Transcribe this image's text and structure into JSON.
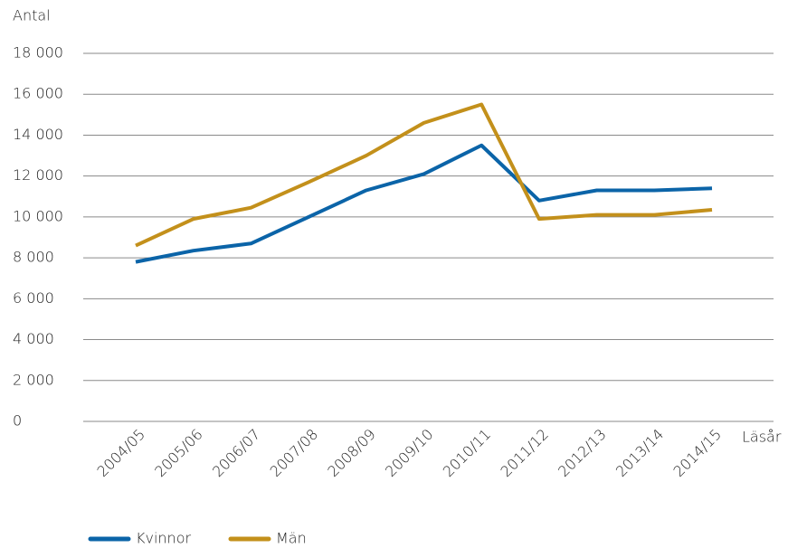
{
  "chart_data": {
    "type": "line",
    "y_axis_label": "Antal",
    "x_axis_label": "Läsår",
    "categories": [
      "2004/05",
      "2005/06",
      "2006/07",
      "2007/08",
      "2008/09",
      "2009/10",
      "2010/11",
      "2011/12",
      "2012/13",
      "2013/14",
      "2014/15"
    ],
    "series": [
      {
        "name": "Kvinnor",
        "color": "#0b64a8",
        "values": [
          7800,
          8350,
          8700,
          10000,
          11300,
          12100,
          13500,
          10800,
          11300,
          11300,
          11400
        ]
      },
      {
        "name": "Män",
        "color": "#c3901b",
        "values": [
          8600,
          9900,
          10450,
          11700,
          13000,
          14600,
          15500,
          9900,
          10100,
          10100,
          10350
        ]
      }
    ],
    "ylim": [
      0,
      18000
    ],
    "yticks": [
      0,
      {
        "value": 2000,
        "label": "2 000"
      },
      {
        "value": 4000,
        "label": "4 000"
      },
      {
        "value": 6000,
        "label": "6 000"
      },
      {
        "value": 8000,
        "label": "8 000"
      },
      {
        "value": 10000,
        "label": "10 000"
      },
      {
        "value": 12000,
        "label": "12 000"
      },
      {
        "value": 14000,
        "label": "14 000"
      },
      {
        "value": 16000,
        "label": "16 000"
      },
      {
        "value": 18000,
        "label": "18 000"
      }
    ],
    "grid": true,
    "legend": "bottom-left"
  }
}
